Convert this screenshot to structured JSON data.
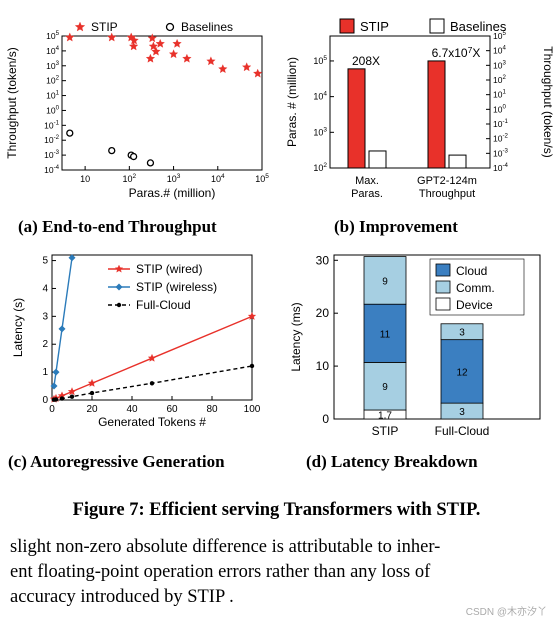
{
  "chart_data": [
    {
      "type": "scatter",
      "title": "",
      "xlabel": "Paras.# (million)",
      "ylabel": "Throughput (token/s)",
      "xscale": "log",
      "yscale": "log",
      "xlim": [
        3,
        100000
      ],
      "ylim": [
        0.0001,
        100000
      ],
      "xticks": [
        "10",
        "10^2",
        "10^3",
        "10^4",
        "10^5"
      ],
      "yticks": [
        "10^5",
        "10^4",
        "10^3",
        "10^2",
        "10^1",
        "10^0",
        "10^-1",
        "10^-2",
        "10^-3",
        "10^-4"
      ],
      "legend_position": "top",
      "series": [
        {
          "name": "STIP",
          "marker": "star",
          "color": "#e8312a",
          "points": [
            [
              4.5,
              80000
            ],
            [
              40,
              80000
            ],
            [
              110,
              80000
            ],
            [
              125,
              20000
            ],
            [
              128,
              50000
            ],
            [
              300,
              3000
            ],
            [
              330,
              70000
            ],
            [
              350,
              20000
            ],
            [
              400,
              9000
            ],
            [
              500,
              30000
            ],
            [
              1000,
              6000
            ],
            [
              1200,
              30000
            ],
            [
              2000,
              3000
            ],
            [
              7000,
              2000
            ],
            [
              13000,
              600
            ],
            [
              45000,
              800
            ],
            [
              80000,
              300
            ]
          ]
        },
        {
          "name": "Baselines",
          "marker": "circle",
          "color": "#000000",
          "points": [
            [
              4.5,
              0.03
            ],
            [
              40,
              0.002
            ],
            [
              110,
              0.001
            ],
            [
              125,
              0.0008
            ],
            [
              300,
              0.0003
            ]
          ]
        }
      ]
    },
    {
      "type": "bar",
      "categories": [
        "Max.\nParas.",
        "GPT2-124m\nThroughput"
      ],
      "ylabel": "Paras. # (million)",
      "y2label": "Throughput (token/s)",
      "yscale": "log",
      "ylim": [
        100,
        500000
      ],
      "y2lim": [
        0.0001,
        100000
      ],
      "yticks": [
        "10^5",
        "10^4",
        "10^3",
        "10^2"
      ],
      "y2ticks": [
        "10^5",
        "10^4",
        "10^3",
        "10^2",
        "10^1",
        "10^0",
        "10^-1",
        "10^-2",
        "10^-3",
        "10^-4"
      ],
      "series": [
        {
          "name": "STIP",
          "color": "#e8312a",
          "values": [
            60000,
            100000
          ]
        },
        {
          "name": "Baselines",
          "color": "#ffffff",
          "values": [
            300,
            230
          ]
        }
      ],
      "annotations": [
        "208X",
        "6.7x10^7X"
      ],
      "legend_position": "top"
    },
    {
      "type": "line",
      "xlabel": "Generated Tokens #",
      "ylabel": "Latency (s)",
      "xlim": [
        0,
        100
      ],
      "ylim": [
        0,
        5.2
      ],
      "xticks": [
        0,
        20,
        40,
        60,
        80,
        100
      ],
      "yticks": [
        0,
        1,
        2,
        3,
        4,
        5
      ],
      "legend_position": "top-right",
      "series": [
        {
          "name": "STIP (wired)",
          "color": "#e8312a",
          "marker": "star",
          "x": [
            1,
            2,
            5,
            10,
            20,
            50,
            100
          ],
          "y": [
            0.03,
            0.06,
            0.15,
            0.3,
            0.6,
            1.5,
            3.0
          ]
        },
        {
          "name": "STIP (wireless)",
          "color": "#2b7bba",
          "marker": "diamond",
          "x": [
            1,
            2,
            5,
            10
          ],
          "y": [
            0.5,
            1.0,
            2.55,
            5.1
          ]
        },
        {
          "name": "Full-Cloud",
          "color": "#000000",
          "marker": "dot",
          "dash": true,
          "x": [
            1,
            2,
            5,
            10,
            20,
            50,
            100
          ],
          "y": [
            0.01,
            0.02,
            0.05,
            0.12,
            0.25,
            0.6,
            1.22
          ]
        }
      ]
    },
    {
      "type": "bar",
      "stacked": true,
      "categories": [
        "STIP",
        "Full-Cloud"
      ],
      "ylabel": "Latency (ms)",
      "ylim": [
        0,
        31
      ],
      "yticks": [
        0,
        10,
        20,
        30
      ],
      "legend_position": "top-right",
      "series": [
        {
          "name": "Device",
          "color": "#ffffff",
          "values": [
            1.7,
            0
          ],
          "labels": [
            "1.7",
            ""
          ]
        },
        {
          "name": "Comm.",
          "color": "#a6cfe2",
          "values": [
            9,
            3
          ],
          "labels": [
            "9",
            "3"
          ]
        },
        {
          "name": "Cloud",
          "color": "#3b7fc1",
          "values": [
            11,
            12
          ],
          "labels": [
            "11",
            "12"
          ]
        },
        {
          "name": "Comm.",
          "color": "#a6cfe2",
          "values": [
            9,
            3
          ],
          "labels": [
            "9",
            "3"
          ]
        }
      ]
    }
  ],
  "captions": {
    "a": "(a) End-to-end Throughput",
    "b": "(b) Improvement",
    "c": "(c) Autoregressive Generation",
    "d": "(d) Latency Breakdown"
  },
  "figure_caption": "Figure 7: Efficient serving Transformers with STIP.",
  "body_lines": [
    "slight non-zero absolute difference is attributable to inher-",
    "ent floating-point operation errors rather than any loss of",
    "accuracy introduced by STIP ."
  ],
  "watermark": "CSDN @木亦汐丫"
}
